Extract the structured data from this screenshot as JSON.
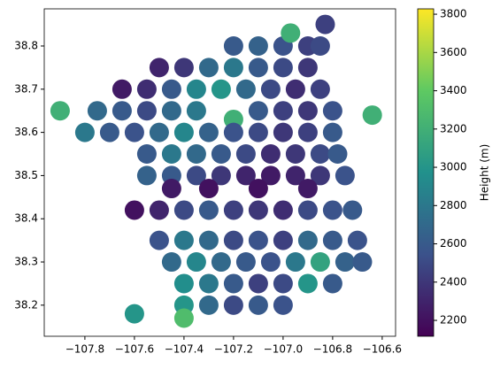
{
  "chart_data": {
    "type": "scatter",
    "colormap": "viridis",
    "colorbar_label": "Height (m)",
    "xlim": [
      -107.964,
      -106.546
    ],
    "ylim": [
      38.128,
      38.886
    ],
    "clim": [
      2117,
      3828
    ],
    "xticks": [
      {
        "value": -107.8,
        "label": "−107.8"
      },
      {
        "value": -107.6,
        "label": "−107.6"
      },
      {
        "value": -107.4,
        "label": "−107.4"
      },
      {
        "value": -107.2,
        "label": "−107.2"
      },
      {
        "value": -107.0,
        "label": "−107.0"
      },
      {
        "value": -106.8,
        "label": "−106.8"
      },
      {
        "value": -106.6,
        "label": "−106.6"
      }
    ],
    "yticks": [
      38.2,
      38.3,
      38.4,
      38.5,
      38.6,
      38.7,
      38.8
    ],
    "cticks": [
      2200,
      2400,
      2600,
      2800,
      3000,
      3200,
      3400,
      3600,
      3800
    ],
    "x": [
      -107.2,
      -107.1,
      -107.0,
      -106.9,
      -106.85,
      -106.83,
      -106.97,
      -107.5,
      -107.4,
      -107.3,
      -107.2,
      -107.1,
      -107.0,
      -106.9,
      -107.65,
      -107.55,
      -107.45,
      -107.35,
      -107.25,
      -107.15,
      -107.05,
      -106.95,
      -106.85,
      -107.9,
      -107.75,
      -107.65,
      -107.55,
      -107.45,
      -107.35,
      -107.2,
      -107.1,
      -107.0,
      -106.9,
      -106.8,
      -106.64,
      -107.8,
      -107.7,
      -107.6,
      -107.5,
      -107.4,
      -107.3,
      -107.2,
      -107.1,
      -107.0,
      -106.9,
      -106.8,
      -107.55,
      -107.45,
      -107.35,
      -107.25,
      -107.15,
      -107.05,
      -106.95,
      -106.85,
      -106.78,
      -107.55,
      -107.45,
      -107.35,
      -107.25,
      -107.15,
      -107.05,
      -106.95,
      -106.85,
      -106.75,
      -107.45,
      -107.3,
      -107.1,
      -106.9,
      -107.6,
      -107.5,
      -107.4,
      -107.3,
      -107.2,
      -107.1,
      -107.0,
      -106.9,
      -106.8,
      -106.72,
      -107.5,
      -107.4,
      -107.3,
      -107.2,
      -107.1,
      -107.0,
      -106.9,
      -106.8,
      -106.7,
      -107.45,
      -107.35,
      -107.25,
      -107.15,
      -107.05,
      -106.95,
      -106.85,
      -106.75,
      -106.68,
      -107.4,
      -107.3,
      -107.2,
      -107.1,
      -107.0,
      -106.9,
      -106.8,
      -107.4,
      -107.3,
      -107.2,
      -107.1,
      -107.0,
      -107.4,
      -107.6
    ],
    "y": [
      38.8,
      38.8,
      38.8,
      38.8,
      38.8,
      38.85,
      38.83,
      38.75,
      38.75,
      38.75,
      38.75,
      38.75,
      38.75,
      38.75,
      38.7,
      38.7,
      38.7,
      38.7,
      38.7,
      38.7,
      38.7,
      38.7,
      38.7,
      38.65,
      38.65,
      38.65,
      38.65,
      38.65,
      38.65,
      38.63,
      38.65,
      38.65,
      38.65,
      38.65,
      38.64,
      38.6,
      38.6,
      38.6,
      38.6,
      38.6,
      38.6,
      38.6,
      38.6,
      38.6,
      38.6,
      38.6,
      38.55,
      38.55,
      38.55,
      38.55,
      38.55,
      38.55,
      38.55,
      38.55,
      38.55,
      38.5,
      38.5,
      38.5,
      38.5,
      38.5,
      38.5,
      38.5,
      38.5,
      38.5,
      38.47,
      38.47,
      38.47,
      38.47,
      38.42,
      38.42,
      38.42,
      38.42,
      38.42,
      38.42,
      38.42,
      38.42,
      38.42,
      38.42,
      38.35,
      38.35,
      38.35,
      38.35,
      38.35,
      38.35,
      38.35,
      38.35,
      38.35,
      38.3,
      38.3,
      38.3,
      38.3,
      38.3,
      38.3,
      38.3,
      38.3,
      38.3,
      38.25,
      38.25,
      38.25,
      38.25,
      38.25,
      38.25,
      38.25,
      38.2,
      38.2,
      38.2,
      38.2,
      38.2,
      38.17,
      38.18
    ],
    "values": [
      2600,
      2650,
      2550,
      2450,
      2500,
      2450,
      3200,
      2300,
      2400,
      2700,
      2800,
      2600,
      2500,
      2400,
      2250,
      2350,
      2600,
      2900,
      3000,
      2700,
      2500,
      2350,
      2450,
      3200,
      2700,
      2600,
      2500,
      2700,
      2800,
      3200,
      2600,
      2450,
      2400,
      2550,
      3200,
      2800,
      2600,
      2550,
      2700,
      2900,
      2650,
      2550,
      2500,
      2400,
      2450,
      2600,
      2600,
      2800,
      2700,
      2600,
      2500,
      2350,
      2400,
      2500,
      2600,
      2650,
      2600,
      2500,
      2400,
      2300,
      2250,
      2300,
      2400,
      2550,
      2250,
      2200,
      2200,
      2250,
      2200,
      2300,
      2500,
      2600,
      2450,
      2400,
      2350,
      2500,
      2550,
      2600,
      2550,
      2800,
      2700,
      2500,
      2550,
      2450,
      2700,
      2600,
      2550,
      2700,
      2900,
      2700,
      2600,
      2550,
      2800,
      3100,
      2650,
      2600,
      2950,
      2800,
      2600,
      2450,
      2500,
      3000,
      2600,
      3000,
      2700,
      2500,
      2600,
      2550,
      3300,
      3000
    ]
  }
}
